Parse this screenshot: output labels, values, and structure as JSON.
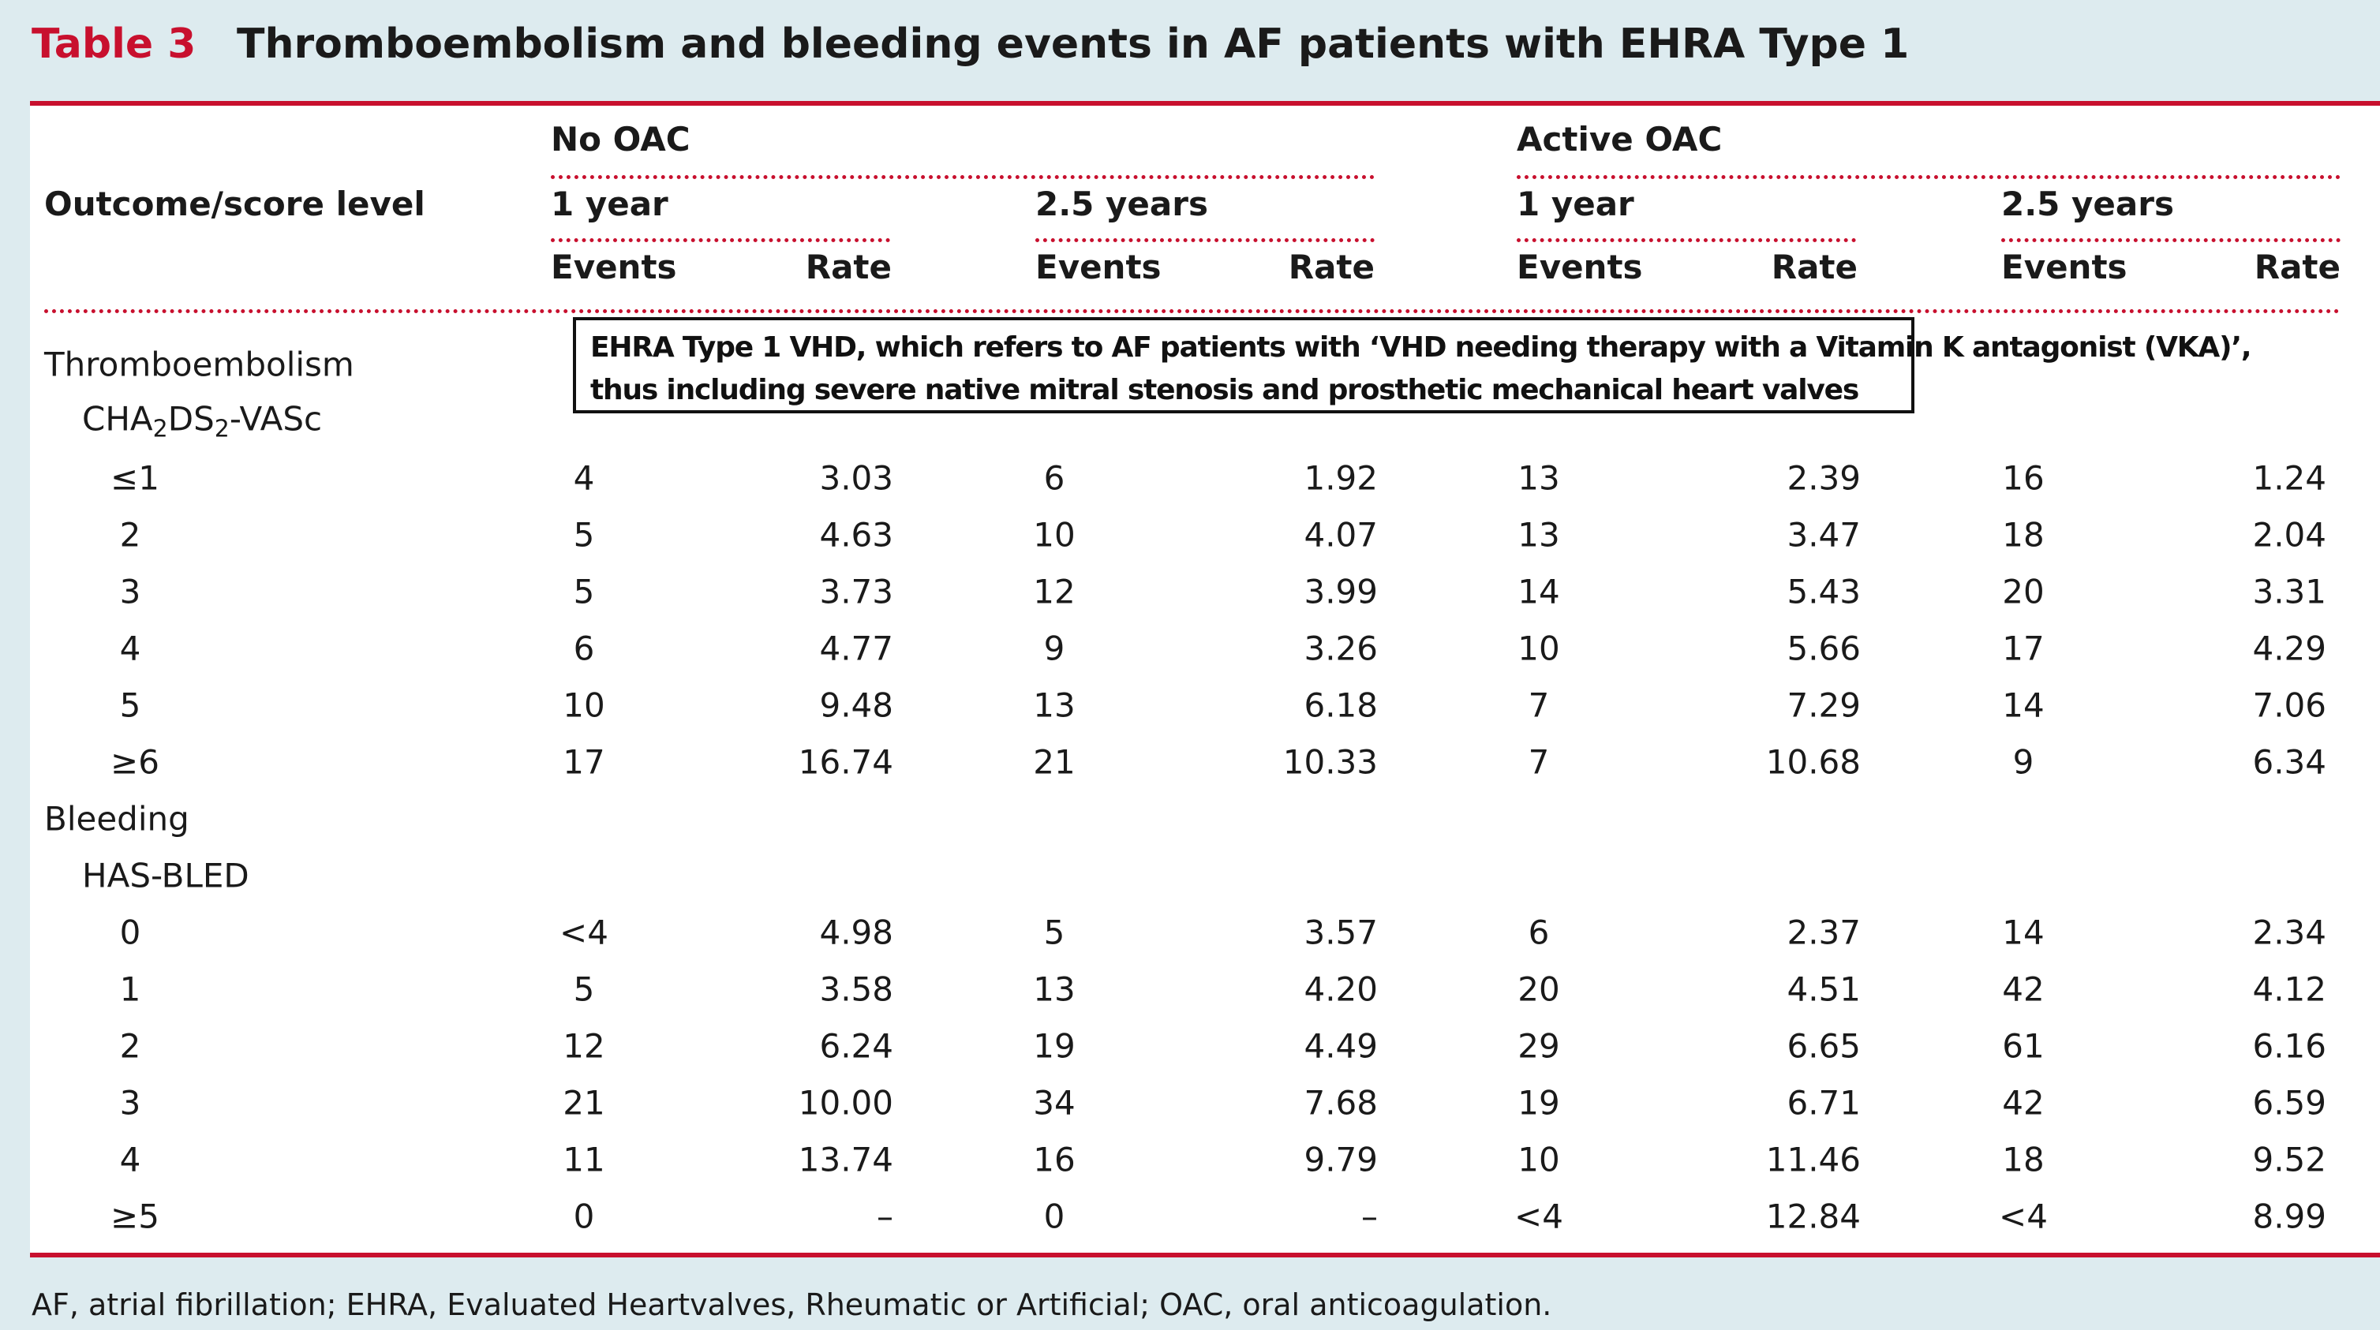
{
  "title": {
    "label": "Table 3",
    "text": "Thromboembolism and bleeding events in AF patients with EHRA Type 1"
  },
  "headers": {
    "outcome": "Outcome/score level",
    "groups": [
      "No OAC",
      "Active OAC"
    ],
    "periods": [
      "1 year",
      "2.5 years",
      "1 year",
      "2.5 years"
    ],
    "cols": [
      "Events",
      "Rate",
      "Events",
      "Rate",
      "Events",
      "Rate",
      "Events",
      "Rate"
    ]
  },
  "note": {
    "line1": "EHRA Type 1 VHD, which refers to AF patients with ‘VHD needing therapy with a Vitamin K antagonist (VKA)’,",
    "line2": "thus including severe native mitral stenosis and prosthetic mechanical heart valves"
  },
  "sections": [
    {
      "name": "Thromboembolism",
      "score_prefix": "CHA",
      "score_sub1": "2",
      "score_mid": "DS",
      "score_sub2": "2",
      "score_suffix": "-VASc",
      "rows": [
        {
          "level": "≤1",
          "values": [
            "4",
            "3.03",
            "6",
            "1.92",
            "13",
            "2.39",
            "16",
            "1.24"
          ]
        },
        {
          "level": "2",
          "values": [
            "5",
            "4.63",
            "10",
            "4.07",
            "13",
            "3.47",
            "18",
            "2.04"
          ]
        },
        {
          "level": "3",
          "values": [
            "5",
            "3.73",
            "12",
            "3.99",
            "14",
            "5.43",
            "20",
            "3.31"
          ]
        },
        {
          "level": "4",
          "values": [
            "6",
            "4.77",
            "9",
            "3.26",
            "10",
            "5.66",
            "17",
            "4.29"
          ]
        },
        {
          "level": "5",
          "values": [
            "10",
            "9.48",
            "13",
            "6.18",
            "7",
            "7.29",
            "14",
            "7.06"
          ]
        },
        {
          "level": "≥6",
          "values": [
            "17",
            "16.74",
            "21",
            "10.33",
            "7",
            "10.68",
            "9",
            "6.34"
          ]
        }
      ]
    },
    {
      "name": "Bleeding",
      "score": "HAS-BLED",
      "rows": [
        {
          "level": "0",
          "values": [
            "<4",
            "4.98",
            "5",
            "3.57",
            "6",
            "2.37",
            "14",
            "2.34"
          ]
        },
        {
          "level": "1",
          "values": [
            "5",
            "3.58",
            "13",
            "4.20",
            "20",
            "4.51",
            "42",
            "4.12"
          ]
        },
        {
          "level": "2",
          "values": [
            "12",
            "6.24",
            "19",
            "4.49",
            "29",
            "6.65",
            "61",
            "6.16"
          ]
        },
        {
          "level": "3",
          "values": [
            "21",
            "10.00",
            "34",
            "7.68",
            "19",
            "6.71",
            "42",
            "6.59"
          ]
        },
        {
          "level": "4",
          "values": [
            "11",
            "13.74",
            "16",
            "9.79",
            "10",
            "11.46",
            "18",
            "9.52"
          ]
        },
        {
          "level": "≥5",
          "values": [
            "0",
            "–",
            "0",
            "–",
            "<4",
            "12.84",
            "<4",
            "8.99"
          ]
        }
      ]
    }
  ],
  "footnote": "AF, atrial fibrillation; EHRA, Evaluated Heartvalves, Rheumatic or Artificial; OAC, oral anticoagulation."
}
